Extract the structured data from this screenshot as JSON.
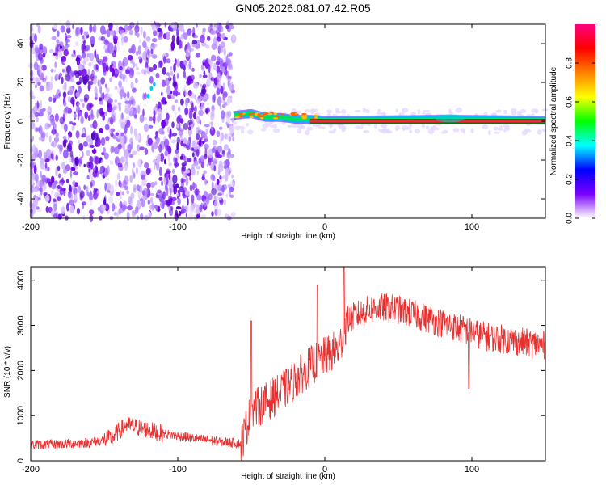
{
  "title": "GN05.2026.081.07.42.R05",
  "chart_data": [
    {
      "type": "heatmap",
      "name": "spectrogram",
      "xlabel": "Height of straight line (km)",
      "ylabel": "Frequency (Hz)",
      "xlim": [
        -200,
        150
      ],
      "ylim": [
        -50,
        50
      ],
      "x_ticks": [
        -200,
        -100,
        0,
        100
      ],
      "x_tick_labels": [
        "-200",
        "-100",
        "0",
        "100"
      ],
      "y_ticks": [
        -40,
        -20,
        0,
        20,
        40
      ],
      "y_tick_labels": [
        "-40",
        "-20",
        "0",
        "20",
        "40"
      ],
      "noise_region_x": [
        -200,
        -62
      ],
      "signal_start_x": -62,
      "signal_line_frequency_hz": 0,
      "signal_trace": [
        {
          "x": -62,
          "freq": 3
        },
        {
          "x": -50,
          "freq": 4
        },
        {
          "x": -40,
          "freq": 2
        },
        {
          "x": -30,
          "freq": 2
        },
        {
          "x": -20,
          "freq": 1
        },
        {
          "x": -10,
          "freq": 1
        },
        {
          "x": 0,
          "freq": 0.5
        },
        {
          "x": 10,
          "freq": 0.5
        },
        {
          "x": 80,
          "freq": 1
        },
        {
          "x": 90,
          "freq": 1
        },
        {
          "x": 150,
          "freq": 0.5
        }
      ],
      "colorbar": {
        "label": "Normalized spectral amplitude",
        "range": [
          0,
          1
        ],
        "ticks": [
          0.0,
          0.2,
          0.4,
          0.6,
          0.8
        ],
        "tick_labels": [
          "0.0",
          "0.2",
          "0.4",
          "0.6",
          "0.8"
        ],
        "colors": [
          "#ffffff",
          "#7a00ff",
          "#0000ff",
          "#00ffff",
          "#00ff00",
          "#ffff00",
          "#ff8000",
          "#ff0000",
          "#ff0080"
        ]
      }
    },
    {
      "type": "line",
      "name": "snr",
      "xlabel": "Height of straight line (km)",
      "ylabel": "SNR (10 * v/v)",
      "xlim": [
        -200,
        150
      ],
      "ylim": [
        0,
        4300
      ],
      "x_ticks": [
        -200,
        -100,
        0,
        100
      ],
      "x_tick_labels": [
        "-200",
        "-100",
        "0",
        "100"
      ],
      "y_ticks": [
        0,
        1000,
        2000,
        3000,
        4000
      ],
      "y_tick_labels": [
        "0",
        "1000",
        "2000",
        "3000",
        "4000"
      ],
      "color": "#e83030",
      "series": [
        {
          "name": "SNR",
          "x": [
            -200,
            -180,
            -160,
            -145,
            -135,
            -125,
            -110,
            -90,
            -70,
            -57,
            -50,
            -40,
            -30,
            -20,
            -10,
            0,
            10,
            15,
            20,
            30,
            40,
            50,
            60,
            70,
            80,
            90,
            100,
            110,
            120,
            130,
            140,
            150
          ],
          "y": [
            350,
            370,
            400,
            500,
            800,
            720,
            600,
            500,
            420,
            380,
            1100,
            1300,
            1500,
            1800,
            2100,
            2300,
            2500,
            3100,
            3200,
            3350,
            3400,
            3350,
            3250,
            3150,
            3050,
            2950,
            2850,
            2750,
            2700,
            2650,
            2600,
            2550
          ]
        }
      ],
      "spikes": [
        {
          "x": -50,
          "y": 3100
        },
        {
          "x": -5,
          "y": 3900
        },
        {
          "x": 13,
          "y": 4300
        },
        {
          "x": 98,
          "y": 1600
        }
      ]
    }
  ]
}
